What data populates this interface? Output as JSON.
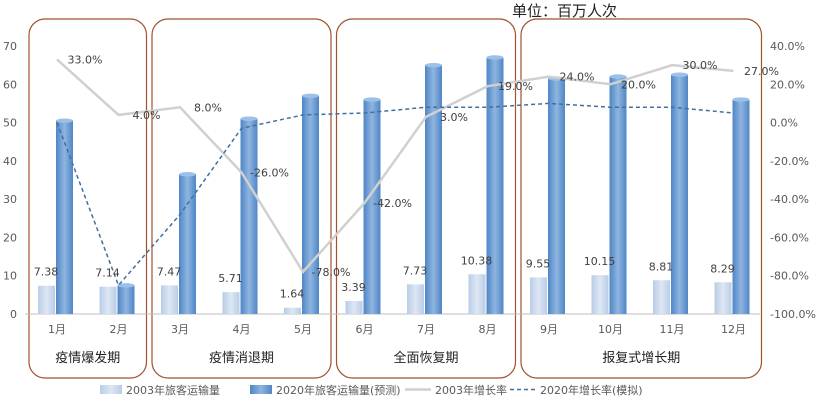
{
  "chart_data": {
    "type": "bar",
    "unit_label": "单位：百万人次",
    "categories": [
      "1月",
      "2月",
      "3月",
      "4月",
      "5月",
      "6月",
      "7月",
      "8月",
      "9月",
      "10月",
      "11月",
      "12月"
    ],
    "left_axis": {
      "min": 0,
      "max": 70,
      "step": 10,
      "ticks": [
        "0",
        "10",
        "20",
        "30",
        "40",
        "50",
        "60",
        "70"
      ]
    },
    "right_axis": {
      "min": -100,
      "max": 40,
      "step": 20,
      "ticks": [
        "-100.0%",
        "-80.0%",
        "-60.0%",
        "-40.0%",
        "-20.0%",
        "0.0%",
        "20.0%",
        "40.0%"
      ]
    },
    "series": [
      {
        "name": "2003年旅客运输量",
        "kind": "bar",
        "axis": "left",
        "color": "#c6d6ec",
        "values": [
          7.38,
          7.14,
          7.47,
          5.71,
          1.64,
          3.39,
          7.73,
          10.38,
          9.55,
          10.15,
          8.81,
          8.29
        ],
        "labels": [
          "7.38",
          "7.14",
          "7.47",
          "5.71",
          "1.64",
          "3.39",
          "7.73",
          "10.38",
          "9.55",
          "10.15",
          "8.81",
          "8.29"
        ]
      },
      {
        "name": "2020年旅客运输量(预测)",
        "kind": "bar",
        "axis": "left",
        "color": "#6a9bd3",
        "values": [
          50.5,
          7.5,
          36.5,
          51,
          57,
          56,
          65,
          67,
          61.5,
          62,
          62.5,
          56
        ]
      },
      {
        "name": "2003年增长率",
        "kind": "line",
        "axis": "right",
        "color": "#d0d0d0",
        "values": [
          33,
          4,
          8,
          -26,
          -78,
          -42,
          3,
          19,
          24,
          20,
          30,
          27
        ],
        "labels": [
          "33.0%",
          "4.0%",
          "8.0%",
          "-26.0%",
          "-78.0%",
          "-42.0%",
          "3.0%",
          "19.0%",
          "24.0%",
          "20.0%",
          "30.0%",
          "27.0%"
        ]
      },
      {
        "name": "2020年增长率(模拟)",
        "kind": "line",
        "axis": "right",
        "color": "#41719c",
        "dashed": true,
        "values": [
          0,
          -85,
          -48,
          -3,
          4,
          5,
          8,
          8,
          10,
          8,
          8,
          5
        ]
      }
    ],
    "phases": [
      {
        "label": "疫情爆发期",
        "start": 0,
        "end": 1
      },
      {
        "label": "疫情消退期",
        "start": 2,
        "end": 4
      },
      {
        "label": "全面恢复期",
        "start": 5,
        "end": 7
      },
      {
        "label": "报复式增长期",
        "start": 8,
        "end": 11
      }
    ],
    "legend_position": "bottom",
    "grid": false
  }
}
